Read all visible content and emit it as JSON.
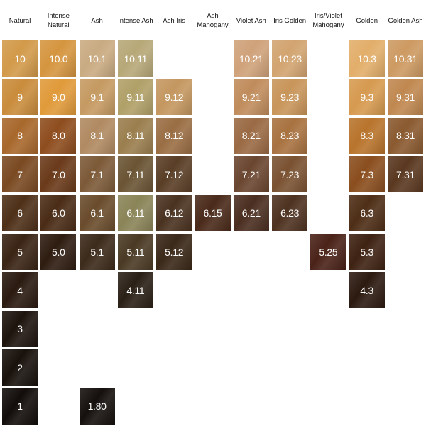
{
  "columns": [
    "Natural",
    "Intense Natural",
    "Ash",
    "Intense Ash",
    "Ash Iris",
    "Ash Mahogany",
    "Violet Ash",
    "Iris Golden",
    "Iris/Violet Mahogany",
    "Golden",
    "Golden Ash"
  ],
  "rows": [
    [
      {
        "label": "10",
        "color": "#d29a4a"
      },
      {
        "label": "10.0",
        "color": "#d5953f"
      },
      {
        "label": "10.1",
        "color": "#c9ab82"
      },
      {
        "label": "10.11",
        "color": "#b7a878"
      },
      null,
      null,
      {
        "label": "10.21",
        "color": "#cfa27a"
      },
      {
        "label": "10.23",
        "color": "#d2a470"
      },
      null,
      {
        "label": "10.3",
        "color": "#e2ae6a"
      },
      {
        "label": "10.31",
        "color": "#cd9a62"
      }
    ],
    [
      {
        "label": "9",
        "color": "#c98c3c"
      },
      {
        "label": "9.0",
        "color": "#e09a3a"
      },
      {
        "label": "9.1",
        "color": "#c59a62"
      },
      {
        "label": "9.11",
        "color": "#b0a068"
      },
      {
        "label": "9.12",
        "color": "#c49760"
      },
      null,
      {
        "label": "9.21",
        "color": "#c08c5c"
      },
      {
        "label": "9.23",
        "color": "#c8955a"
      },
      null,
      {
        "label": "9.3",
        "color": "#d69a50"
      },
      {
        "label": "9.31",
        "color": "#c08850"
      }
    ],
    [
      {
        "label": "8",
        "color": "#a8682c"
      },
      {
        "label": "8.0",
        "color": "#8e4d1e"
      },
      {
        "label": "8.1",
        "color": "#b08a62"
      },
      {
        "label": "8.11",
        "color": "#9a7e4e"
      },
      {
        "label": "8.12",
        "color": "#9a6e44"
      },
      null,
      {
        "label": "8.21",
        "color": "#9a6a44"
      },
      {
        "label": "8.23",
        "color": "#a87240"
      },
      null,
      {
        "label": "8.3",
        "color": "#b8742c"
      },
      {
        "label": "8.31",
        "color": "#8a5a30"
      }
    ],
    [
      {
        "label": "7",
        "color": "#7a4a22"
      },
      {
        "label": "7.0",
        "color": "#6a3a1a"
      },
      {
        "label": "7.1",
        "color": "#7c5a38"
      },
      {
        "label": "7.11",
        "color": "#6a5434"
      },
      {
        "label": "7.12",
        "color": "#5a3e26"
      },
      null,
      {
        "label": "7.21",
        "color": "#6a4630"
      },
      {
        "label": "7.23",
        "color": "#7a5232"
      },
      null,
      {
        "label": "7.3",
        "color": "#8a4e1e"
      },
      {
        "label": "7.31",
        "color": "#5a3820"
      }
    ],
    [
      {
        "label": "6",
        "color": "#4e3018"
      },
      {
        "label": "6.0",
        "color": "#4a2c16"
      },
      {
        "label": "6.1",
        "color": "#6a4c2c"
      },
      {
        "label": "6.11",
        "color": "#8a8458"
      },
      {
        "label": "6.12",
        "color": "#4a3220"
      },
      {
        "label": "6.15",
        "color": "#4a2a1a"
      },
      {
        "label": "6.21",
        "color": "#4a2e20"
      },
      {
        "label": "6.23",
        "color": "#4e3220"
      },
      null,
      {
        "label": "6.3",
        "color": "#4e2e16"
      },
      null
    ],
    [
      {
        "label": "5",
        "color": "#3a2414"
      },
      {
        "label": "5.0",
        "color": "#2e1c10"
      },
      {
        "label": "5.1",
        "color": "#3c2a1a"
      },
      {
        "label": "5.11",
        "color": "#4a3a24"
      },
      {
        "label": "5.12",
        "color": "#3a2818"
      },
      null,
      null,
      null,
      {
        "label": "5.25",
        "color": "#4a2218"
      },
      {
        "label": "5.3",
        "color": "#3e2212"
      },
      null
    ],
    [
      {
        "label": "4",
        "color": "#2a1a10"
      },
      null,
      null,
      {
        "label": "4.11",
        "color": "#2a2016"
      },
      null,
      null,
      null,
      null,
      null,
      {
        "label": "4.3",
        "color": "#2c1a10"
      },
      null
    ],
    [
      {
        "label": "3",
        "color": "#1e140e"
      },
      null,
      null,
      null,
      null,
      null,
      null,
      null,
      null,
      null,
      null
    ],
    [
      {
        "label": "2",
        "color": "#18110c"
      },
      null,
      null,
      null,
      null,
      null,
      null,
      null,
      null,
      null,
      null
    ],
    [
      {
        "label": "1",
        "color": "#120d0a"
      },
      null,
      {
        "label": "1.80",
        "color": "#15100d"
      },
      null,
      null,
      null,
      null,
      null,
      null,
      null,
      null
    ]
  ]
}
